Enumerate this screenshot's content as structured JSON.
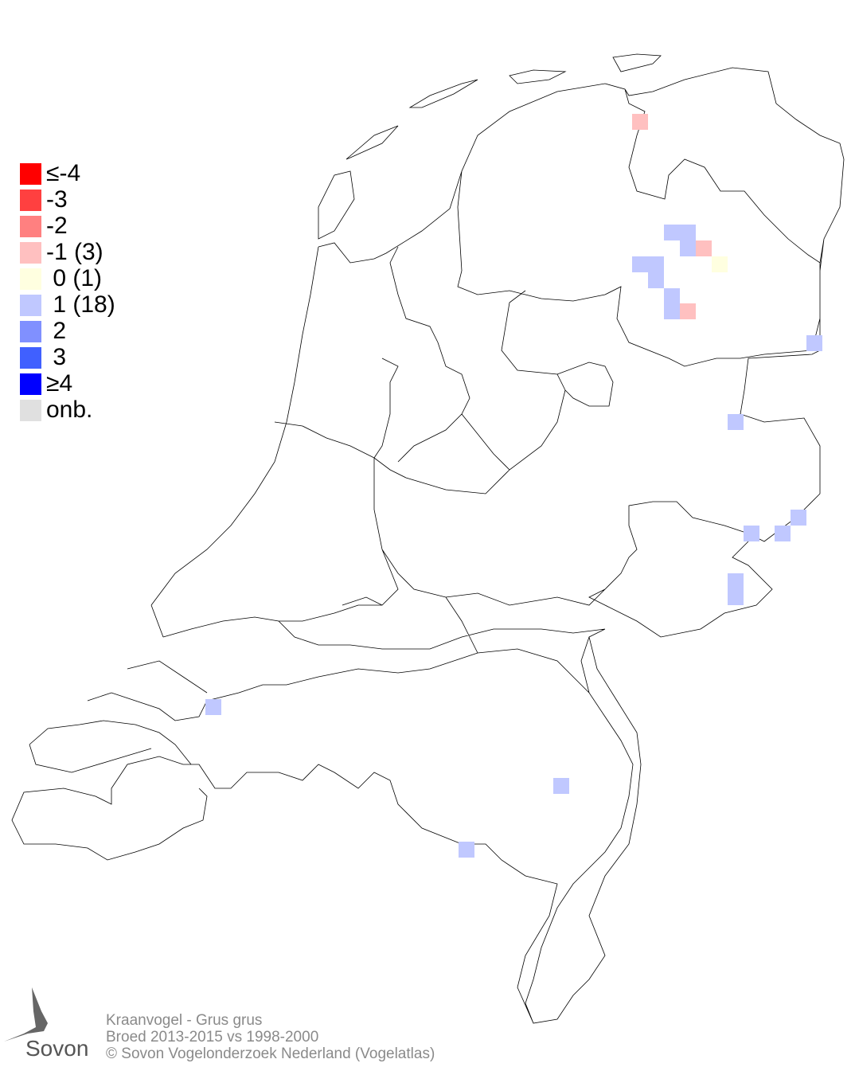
{
  "legend": [
    {
      "label": "≤-4",
      "color": "#ff0000"
    },
    {
      "label": "-3",
      "color": "#ff4040"
    },
    {
      "label": "-2",
      "color": "#ff8080"
    },
    {
      "label": "-1 (3)",
      "color": "#ffc0c0"
    },
    {
      "label": " 0 (1)",
      "color": "#ffffe0"
    },
    {
      "label": " 1 (18)",
      "color": "#c0c8ff"
    },
    {
      "label": " 2",
      "color": "#8090ff"
    },
    {
      "label": " 3",
      "color": "#4060ff"
    },
    {
      "label": "≥4",
      "color": "#0000ff"
    },
    {
      "label": "onb.",
      "color": "#e0e0e0"
    }
  ],
  "footer": {
    "species": "Kraanvogel - Grus grus",
    "comparison": "Broed 2013-2015 vs 1998-2000",
    "copyright": "© Sovon Vogelonderzoek Nederland (Vogelatlas)"
  },
  "logo": {
    "text": "Sovon"
  }
}
